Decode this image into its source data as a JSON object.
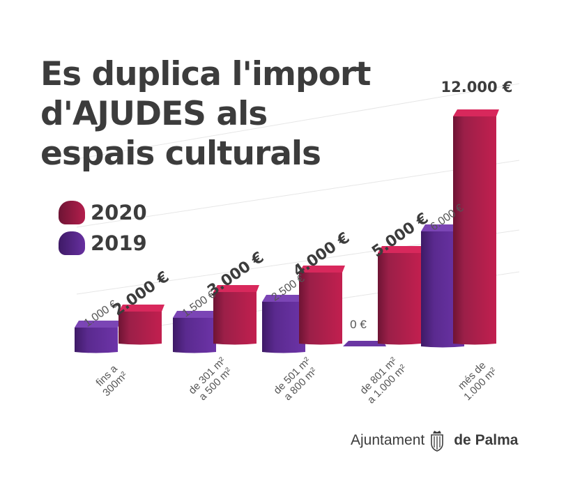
{
  "title_lines": [
    "Es duplica l'import",
    "d'AJUDES als",
    "espais culturals"
  ],
  "legend": [
    {
      "label": "2020",
      "color": "#9b1f48"
    },
    {
      "label": "2019",
      "color": "#5a2a8f"
    }
  ],
  "footer": {
    "text1": "Ajuntament",
    "text2": "de Palma",
    "crest": "palma-coat-of-arms"
  },
  "chart_data": {
    "type": "bar",
    "categories": [
      [
        "fins a",
        "300m²"
      ],
      [
        "de 301 m²",
        "a 500 m²"
      ],
      [
        "de 501 m²",
        "a 800 m²"
      ],
      [
        "de 801 m²",
        "a 1.000 m²"
      ],
      [
        "més de",
        "1.000 m²"
      ]
    ],
    "series": [
      {
        "name": "2019",
        "values": [
          1000,
          1500,
          2500,
          0,
          6000
        ],
        "labels": [
          "1.000 €",
          "1.500 €",
          "2.500 €",
          "0 €",
          "6.000 €"
        ]
      },
      {
        "name": "2020",
        "values": [
          2000,
          3000,
          4000,
          5000,
          12000
        ],
        "labels": [
          "2.000 €",
          "3.000 €",
          "4.000 €",
          "5.000 €",
          "12.000 €"
        ]
      }
    ],
    "ylim": [
      0,
      12000
    ],
    "grid": true,
    "legend_position": "left"
  }
}
